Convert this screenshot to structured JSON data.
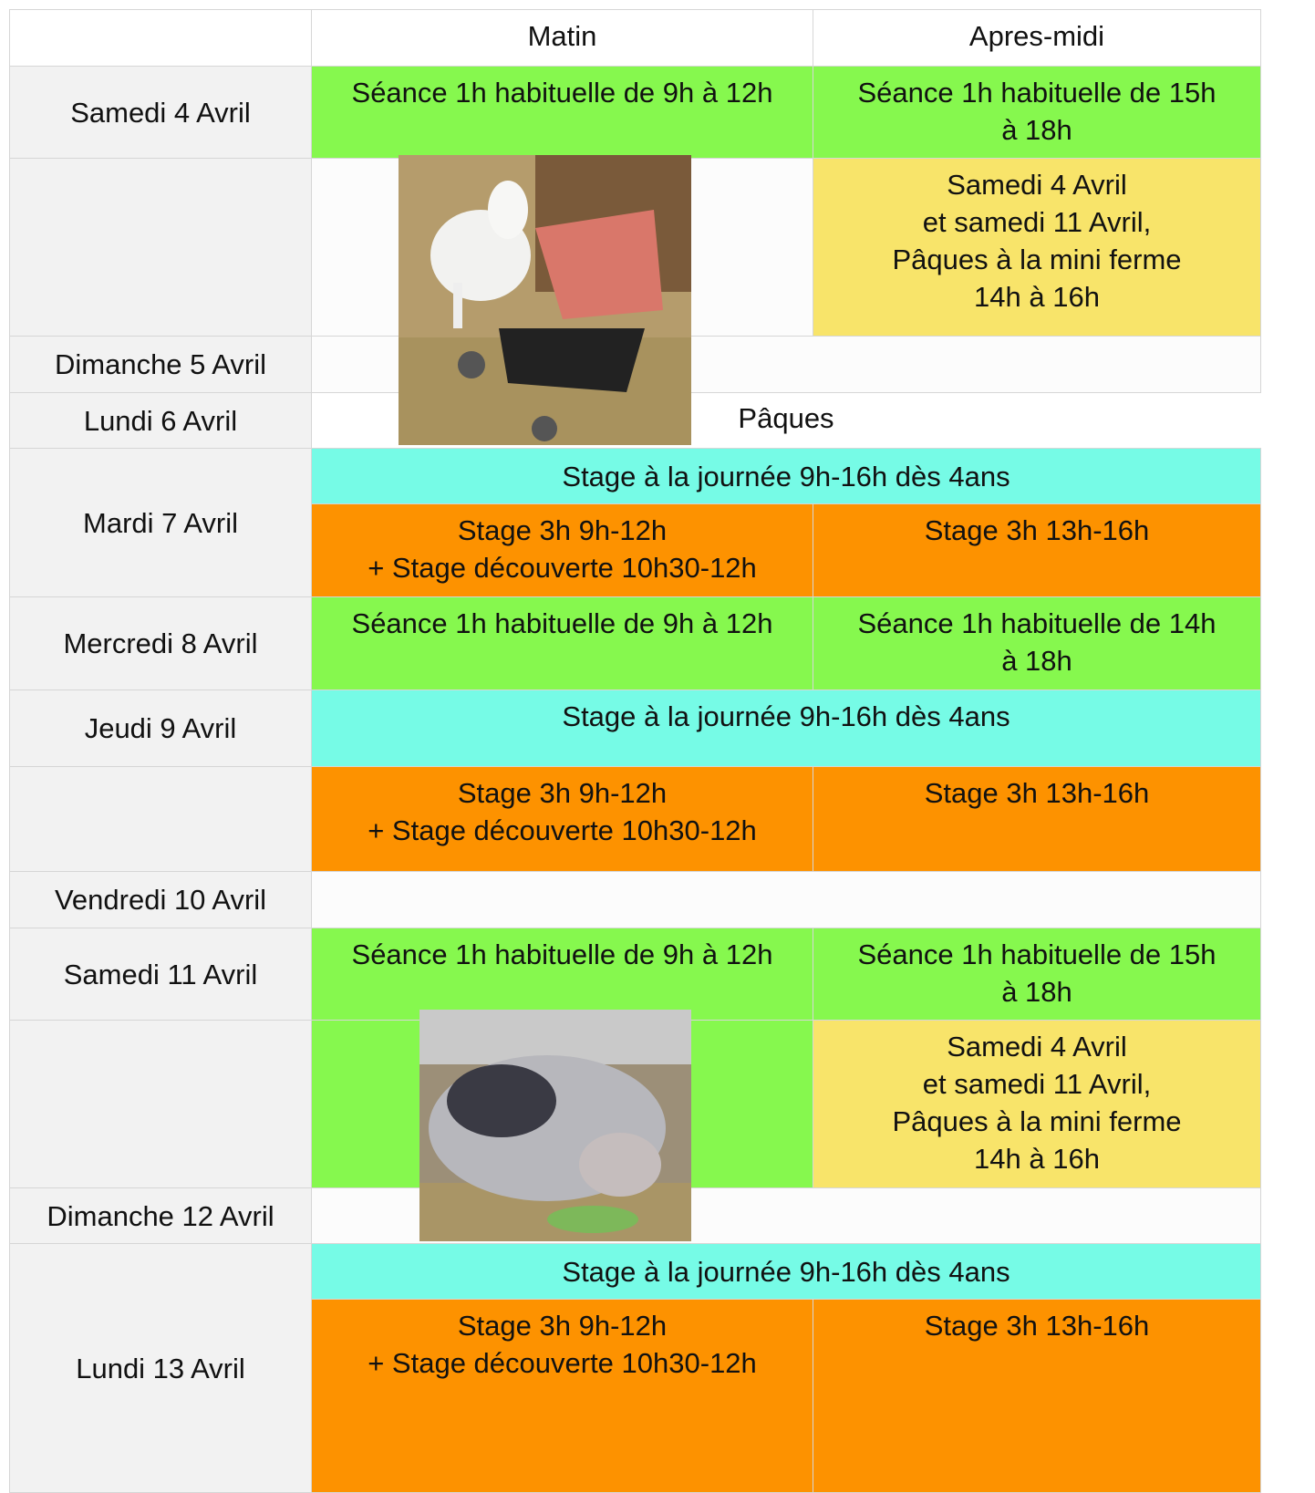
{
  "columns": [
    "Matin",
    "Apres-midi"
  ],
  "days": [
    "Samedi 4 Avril",
    "Dimanche 5 Avril",
    "Lundi 6 Avril",
    "Mardi 7 Avril",
    "Mercredi 8 Avril",
    "Jeudi 9 Avril",
    "Vendredi 10 Avril",
    "Samedi 11 Avril",
    "Dimanche 12 Avril",
    "Lundi 13 Avril"
  ],
  "activities": [
    "Séance 1h habituelle de 9h à 12h",
    "Séance 1h habituelle de 15h à 18h",
    "Samedi 4 Avril\net samedi 11 Avril,\nPâques à la mini ferme\n14h à 16h",
    "Pâques",
    "Stage à la journée 9h-16h dès 4ans",
    "Stage 3h 9h-12h\n+ Stage découverte 10h30-12h",
    "Stage 3h 13h-16h",
    "Séance 1h habituelle de 9h à 12h",
    "Séance 1h habituelle de 14h à 18h",
    "Stage à la journée 9h-16h dès 4ans",
    "Stage 3h 9h-12h\n+ Stage découverte 10h30-12h",
    "Stage 3h 13h-16h",
    "Séance 1h habituelle de 9h à 12h",
    "Séance 1h habituelle de 15h à 18h",
    "Samedi 4 Avril\net samedi 11 Avril,\nPâques à la mini ferme\n14h à 16h",
    "Stage à la journée 9h-16h dès 4ans",
    "Stage 3h 9h-12h\n+ Stage découverte 10h30-12h",
    "Stage 3h 13h-16h"
  ]
}
